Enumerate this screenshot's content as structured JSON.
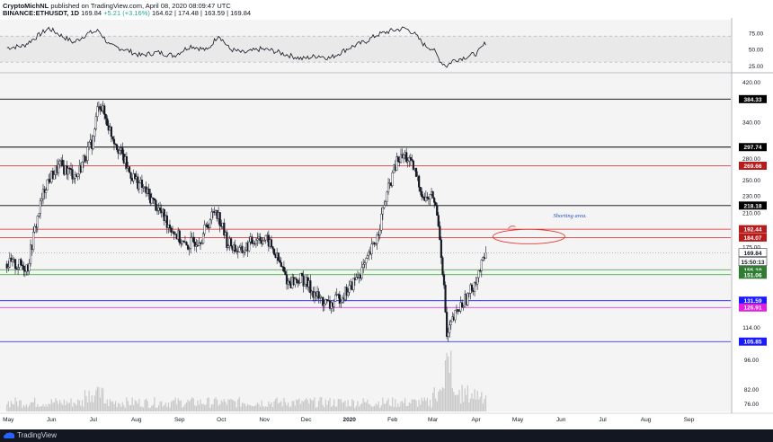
{
  "header": {
    "publisher": "CryptoMichNL",
    "published_text": "published on TradingView.com, April 08, 2020 08:09:47 UTC",
    "symbol": "BINANCE:ETHUSDT, 1D",
    "price": "169.84",
    "change": "+5.21 (+3.16%)",
    "ohlc": "164.62 | 174.48 | 163.59 | 169.84"
  },
  "footer": {
    "brand": "TradingView",
    "logo_icon": "tradingview-cloud-icon"
  },
  "annotation": {
    "text": "Shorting area."
  },
  "colors": {
    "candle": "#131722",
    "grid_bg": "#f4f4f4",
    "pane_band": "#e9e9e9",
    "black_line": "#000000",
    "red_line": "#e02020",
    "green_line": "#2ca02c",
    "magenta_line": "#e020e0",
    "blue_line": "#1a1aff",
    "ellipse": "#e53935",
    "annotation_text": "#1e4fbf"
  },
  "chart_data": {
    "type": "candlestick",
    "symbol": "BINANCE:ETHUSDT",
    "interval": "1D",
    "price_scale": "log",
    "ylim": [
      73,
      440
    ],
    "y_ticks": [
      420.0,
      340.0,
      280.0,
      250.0,
      230.0,
      210.0,
      175.0,
      126.0,
      114.0,
      96.0,
      82.0,
      76.0
    ],
    "x_ticks": [
      "May",
      "Jun",
      "Jul",
      "Aug",
      "Sep",
      "Oct",
      "Nov",
      "Dec",
      "2020",
      "Feb",
      "Mar",
      "Apr",
      "May",
      "Jun",
      "Jul",
      "Aug",
      "Sep"
    ],
    "x_tick_days": [
      1,
      32,
      62,
      93,
      124,
      154,
      185,
      215,
      246,
      277,
      306,
      337,
      367,
      398,
      428,
      459,
      490
    ],
    "xlim_days": [
      -5,
      520
    ],
    "last_candle_day": 344,
    "current_price": "169.84",
    "countdown": "15:50:13",
    "horizontal_levels": [
      {
        "value": 384.33,
        "label": "384.33",
        "color": "black"
      },
      {
        "value": 297.74,
        "label": "297.74",
        "color": "black"
      },
      {
        "value": 269.66,
        "label": "269.66",
        "color": "red"
      },
      {
        "value": 218.18,
        "label": "218.18",
        "color": "black"
      },
      {
        "value": 192.44,
        "label": "192.44",
        "color": "red"
      },
      {
        "value": 184.07,
        "label": "184.07",
        "color": "red"
      },
      {
        "value": 155.1,
        "label": "155.10",
        "color": "green"
      },
      {
        "value": 151.06,
        "label": "151.06",
        "color": "green"
      },
      {
        "value": 131.59,
        "label": "131.59",
        "color": "blue"
      },
      {
        "value": 126.91,
        "label": "126.91",
        "color": "magenta"
      },
      {
        "value": 105.85,
        "label": "105.85",
        "color": "blue"
      }
    ],
    "close_anchors": [
      [
        0,
        160
      ],
      [
        15,
        158
      ],
      [
        28,
        245
      ],
      [
        38,
        270
      ],
      [
        50,
        255
      ],
      [
        62,
        310
      ],
      [
        66,
        380
      ],
      [
        75,
        320
      ],
      [
        88,
        260
      ],
      [
        102,
        230
      ],
      [
        115,
        200
      ],
      [
        128,
        175
      ],
      [
        140,
        185
      ],
      [
        150,
        215
      ],
      [
        158,
        180
      ],
      [
        168,
        170
      ],
      [
        180,
        185
      ],
      [
        188,
        180
      ],
      [
        202,
        145
      ],
      [
        212,
        148
      ],
      [
        224,
        133
      ],
      [
        232,
        128
      ],
      [
        246,
        140
      ],
      [
        258,
        160
      ],
      [
        266,
        185
      ],
      [
        272,
        225
      ],
      [
        280,
        275
      ],
      [
        286,
        285
      ],
      [
        292,
        265
      ],
      [
        300,
        225
      ],
      [
        306,
        230
      ],
      [
        310,
        200
      ],
      [
        314,
        140
      ],
      [
        316,
        108
      ],
      [
        320,
        118
      ],
      [
        326,
        128
      ],
      [
        332,
        136
      ],
      [
        338,
        150
      ],
      [
        341,
        158
      ],
      [
        344,
        169.84
      ]
    ],
    "rsi": {
      "levels": [
        70,
        30
      ],
      "y_ticks": [
        75.0,
        50.0,
        25.0
      ],
      "ylim": [
        15,
        95
      ],
      "anchors": [
        [
          0,
          52
        ],
        [
          12,
          55
        ],
        [
          22,
          70
        ],
        [
          30,
          82
        ],
        [
          38,
          72
        ],
        [
          48,
          60
        ],
        [
          58,
          74
        ],
        [
          66,
          78
        ],
        [
          74,
          55
        ],
        [
          84,
          50
        ],
        [
          96,
          40
        ],
        [
          108,
          45
        ],
        [
          120,
          40
        ],
        [
          132,
          55
        ],
        [
          144,
          48
        ],
        [
          152,
          72
        ],
        [
          160,
          50
        ],
        [
          170,
          44
        ],
        [
          182,
          50
        ],
        [
          190,
          48
        ],
        [
          200,
          42
        ],
        [
          212,
          35
        ],
        [
          224,
          40
        ],
        [
          232,
          36
        ],
        [
          246,
          52
        ],
        [
          258,
          62
        ],
        [
          266,
          72
        ],
        [
          276,
          78
        ],
        [
          286,
          82
        ],
        [
          292,
          75
        ],
        [
          300,
          56
        ],
        [
          306,
          50
        ],
        [
          312,
          30
        ],
        [
          316,
          24
        ],
        [
          320,
          32
        ],
        [
          330,
          38
        ],
        [
          338,
          44
        ],
        [
          344,
          60
        ]
      ]
    },
    "volume_profile": {
      "note": "relative volume bars at bottom of price pane",
      "base_level": 0.25,
      "spike_days": [
        315,
        316,
        317,
        318,
        319
      ]
    }
  }
}
